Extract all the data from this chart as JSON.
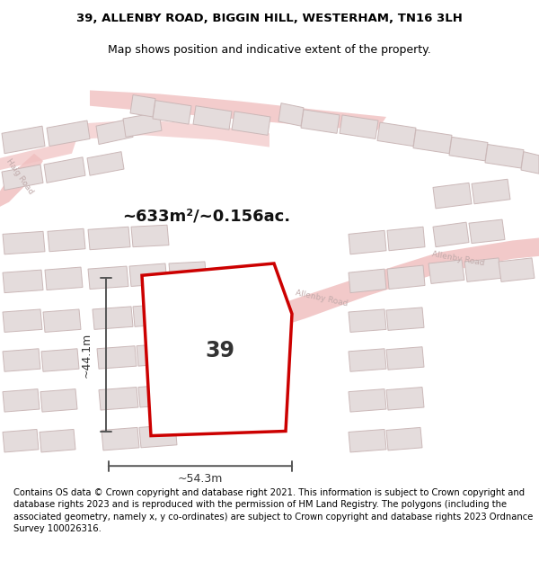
{
  "title_line1": "39, ALLENBY ROAD, BIGGIN HILL, WESTERHAM, TN16 3LH",
  "title_line2": "Map shows position and indicative extent of the property.",
  "footer_text": "Contains OS data © Crown copyright and database right 2021. This information is subject to Crown copyright and database rights 2023 and is reproduced with the permission of HM Land Registry. The polygons (including the associated geometry, namely x, y co-ordinates) are subject to Crown copyright and database rights 2023 Ordnance Survey 100026316.",
  "area_text": "~633m²/~0.156ac.",
  "width_text": "~54.3m",
  "height_text": "~44.1m",
  "property_label": "39",
  "map_bg": "#f2eeee",
  "road_color": "#f0c0c0",
  "bld_color": "#e4dcdc",
  "bld_edge": "#cbb8b8",
  "prop_fill": "#ffffff",
  "prop_edge": "#cc0000",
  "dim_color": "#555555",
  "road_lbl": "#c0aaaa",
  "title_fs": 9.5,
  "footer_fs": 7.2
}
